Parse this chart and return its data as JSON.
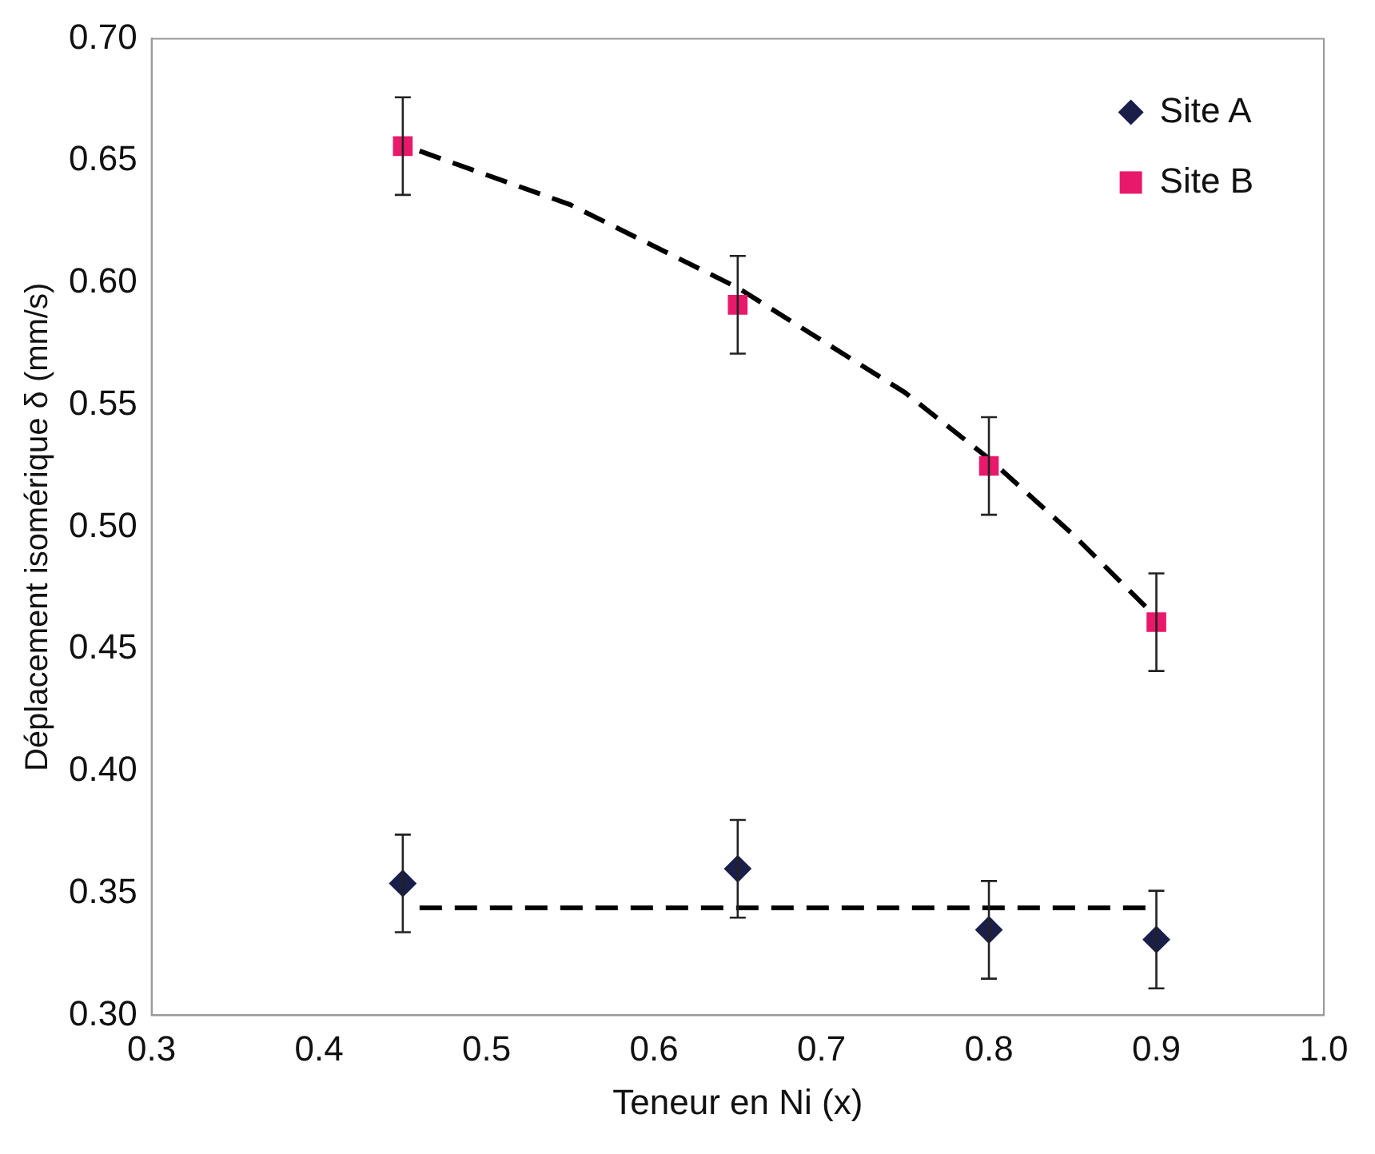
{
  "chart_data": {
    "type": "scatter",
    "xlabel": "Teneur en Ni (x)",
    "ylabel": "Déplacement isomérique δ (mm/s)",
    "xlim": [
      0.3,
      1.0
    ],
    "ylim": [
      0.3,
      0.7
    ],
    "xticks": [
      0.3,
      0.4,
      0.5,
      0.6,
      0.7,
      0.8,
      0.9,
      {
        "value": 1.0,
        "label": "1.0"
      }
    ],
    "yticks": [
      {
        "value": 0.3,
        "label": "0.30"
      },
      {
        "value": 0.35,
        "label": "0.35"
      },
      {
        "value": 0.4,
        "label": "0.40"
      },
      {
        "value": 0.45,
        "label": "0.45"
      },
      {
        "value": 0.5,
        "label": "0.50"
      },
      {
        "value": 0.55,
        "label": "0.55"
      },
      {
        "value": 0.6,
        "label": "0.60"
      },
      {
        "value": 0.65,
        "label": "0.65"
      },
      {
        "value": 0.7,
        "label": "0.70"
      }
    ],
    "grid": false,
    "legend": "top right",
    "series": [
      {
        "name": "Site A",
        "marker": "diamond",
        "color": "#1a1f4a",
        "x": [
          0.45,
          0.65,
          0.8,
          0.9
        ],
        "values": [
          0.354,
          0.36,
          0.335,
          0.331
        ],
        "errors": [
          0.02,
          0.02,
          0.02,
          0.02
        ]
      },
      {
        "name": "Site B",
        "marker": "square",
        "color": "#e8196a",
        "x": [
          0.45,
          0.65,
          0.8,
          0.9
        ],
        "values": [
          0.656,
          0.591,
          0.525,
          0.461
        ],
        "errors": [
          0.02,
          0.02,
          0.02,
          0.02
        ]
      },
      {
        "type": "line",
        "line_style": "dashed",
        "marker": "none",
        "color": "#000000",
        "x": [
          0.46,
          0.55,
          0.65,
          0.75,
          0.8,
          0.85,
          0.9
        ],
        "values": [
          0.654,
          0.632,
          0.598,
          0.555,
          0.528,
          0.497,
          0.463
        ]
      },
      {
        "type": "line",
        "line_style": "dashed",
        "marker": "none",
        "color": "#000000",
        "x": [
          0.46,
          0.9
        ],
        "values": [
          0.344,
          0.344
        ]
      }
    ]
  }
}
